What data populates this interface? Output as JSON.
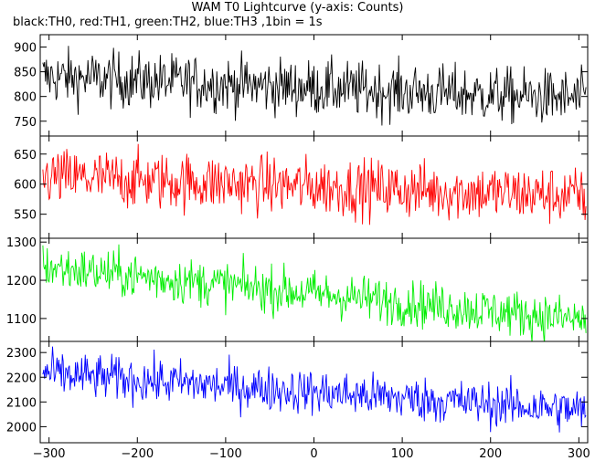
{
  "chart_data": {
    "type": "line",
    "title": "WAM T0 Lightcurve (y-axis: Counts)",
    "subtitle": "black:TH0, red:TH1, green:TH2, blue:TH3 ,1bin = 1s",
    "xlim": [
      -310,
      310
    ],
    "x_ticks": [
      -300,
      -200,
      -100,
      0,
      100,
      200,
      300
    ],
    "x_tick_labels": [
      "−300",
      "−200",
      "−100",
      "0",
      "100",
      "200",
      "300"
    ],
    "grid": false,
    "panels": [
      {
        "name": "TH0",
        "color": "#000000",
        "ylim": [
          720,
          925
        ],
        "y_ticks": [
          750,
          800,
          850,
          900
        ],
        "mean_start": 840,
        "mean_end": 795,
        "noise": 28
      },
      {
        "name": "TH1",
        "color": "#ff0000",
        "ylim": [
          510,
          680
        ],
        "y_ticks": [
          550,
          600,
          650
        ],
        "mean_start": 612,
        "mean_end": 580,
        "noise": 24
      },
      {
        "name": "TH2",
        "color": "#00ee00",
        "ylim": [
          1040,
          1310
        ],
        "y_ticks": [
          1100,
          1200,
          1300
        ],
        "mean_start": 1235,
        "mean_end": 1095,
        "noise": 30
      },
      {
        "name": "TH3",
        "color": "#0000ff",
        "ylim": [
          1935,
          2345
        ],
        "y_ticks": [
          2000,
          2100,
          2200,
          2300
        ],
        "mean_start": 2215,
        "mean_end": 2065,
        "noise": 45
      }
    ]
  }
}
